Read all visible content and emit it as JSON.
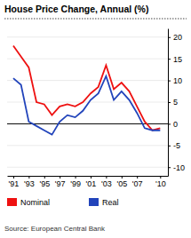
{
  "chart_data": {
    "type": "line",
    "title": "House Price Change, Annual (%)",
    "annotations": [
      "Source: European Central Bank"
    ],
    "x": [
      1991,
      1992,
      1993,
      1994,
      1995,
      1996,
      1997,
      1998,
      1999,
      2000,
      2001,
      2002,
      2003,
      2004,
      2005,
      2006,
      2007,
      2008,
      2009,
      2010
    ],
    "series": [
      {
        "name": "Nominal",
        "color": "#ee1111",
        "values": [
          18.0,
          15.5,
          13.0,
          5.0,
          4.5,
          2.0,
          4.0,
          4.5,
          4.0,
          5.0,
          7.0,
          8.5,
          13.5,
          8.0,
          9.5,
          7.5,
          4.0,
          0.5,
          -1.5,
          -1.0
        ]
      },
      {
        "name": "Real",
        "color": "#2244bb",
        "values": [
          10.5,
          9.0,
          0.5,
          -0.5,
          -1.5,
          -2.5,
          0.5,
          2.0,
          1.5,
          3.0,
          5.5,
          7.0,
          11.0,
          5.5,
          7.5,
          5.5,
          2.5,
          -1.0,
          -1.5,
          -1.5
        ]
      }
    ],
    "xlim": [
      1990.2,
      2011.0
    ],
    "xticks": [
      {
        "value": 1991,
        "label": "'91"
      },
      {
        "value": 1993,
        "label": "'93"
      },
      {
        "value": 1995,
        "label": "'95"
      },
      {
        "value": 1997,
        "label": "'97"
      },
      {
        "value": 1999,
        "label": "'99"
      },
      {
        "value": 2001,
        "label": "'01"
      },
      {
        "value": 2003,
        "label": "'03"
      },
      {
        "value": 2005,
        "label": "'05"
      },
      {
        "value": 2007,
        "label": "'07"
      },
      {
        "value": 2010,
        "label": "'10"
      }
    ],
    "ylim": [
      -12,
      22
    ],
    "yticks": [
      -10,
      -5,
      0,
      5,
      10,
      15,
      20
    ],
    "grid": true,
    "legend": "bottom"
  }
}
